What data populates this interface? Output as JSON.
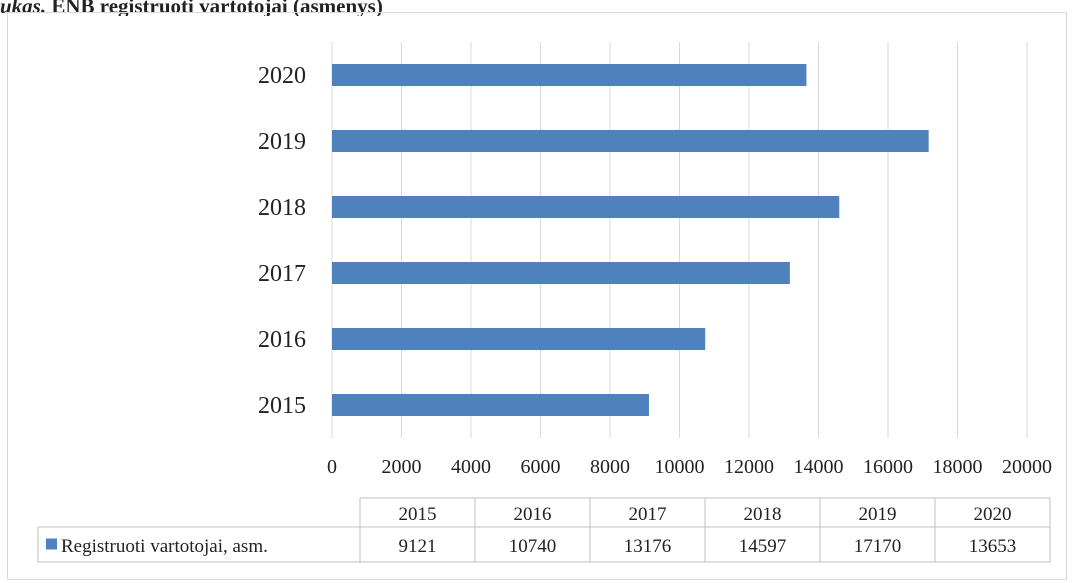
{
  "caption": {
    "prefix": "ukas.",
    "title": "ENB registruoti vartotojai (asmenys)"
  },
  "chart_data": {
    "type": "bar",
    "orientation": "horizontal",
    "categories": [
      "2015",
      "2016",
      "2017",
      "2018",
      "2019",
      "2020"
    ],
    "series": [
      {
        "name": "Registruoti vartotojai, asm.",
        "values": [
          9121,
          10740,
          13176,
          14597,
          17170,
          13653
        ],
        "color": "#4f81bd"
      }
    ],
    "xlim": [
      0,
      20000
    ],
    "xticks": [
      0,
      2000,
      4000,
      6000,
      8000,
      10000,
      12000,
      14000,
      16000,
      18000,
      20000
    ],
    "grid": "vertical",
    "data_table": true,
    "legend": "in data table"
  }
}
